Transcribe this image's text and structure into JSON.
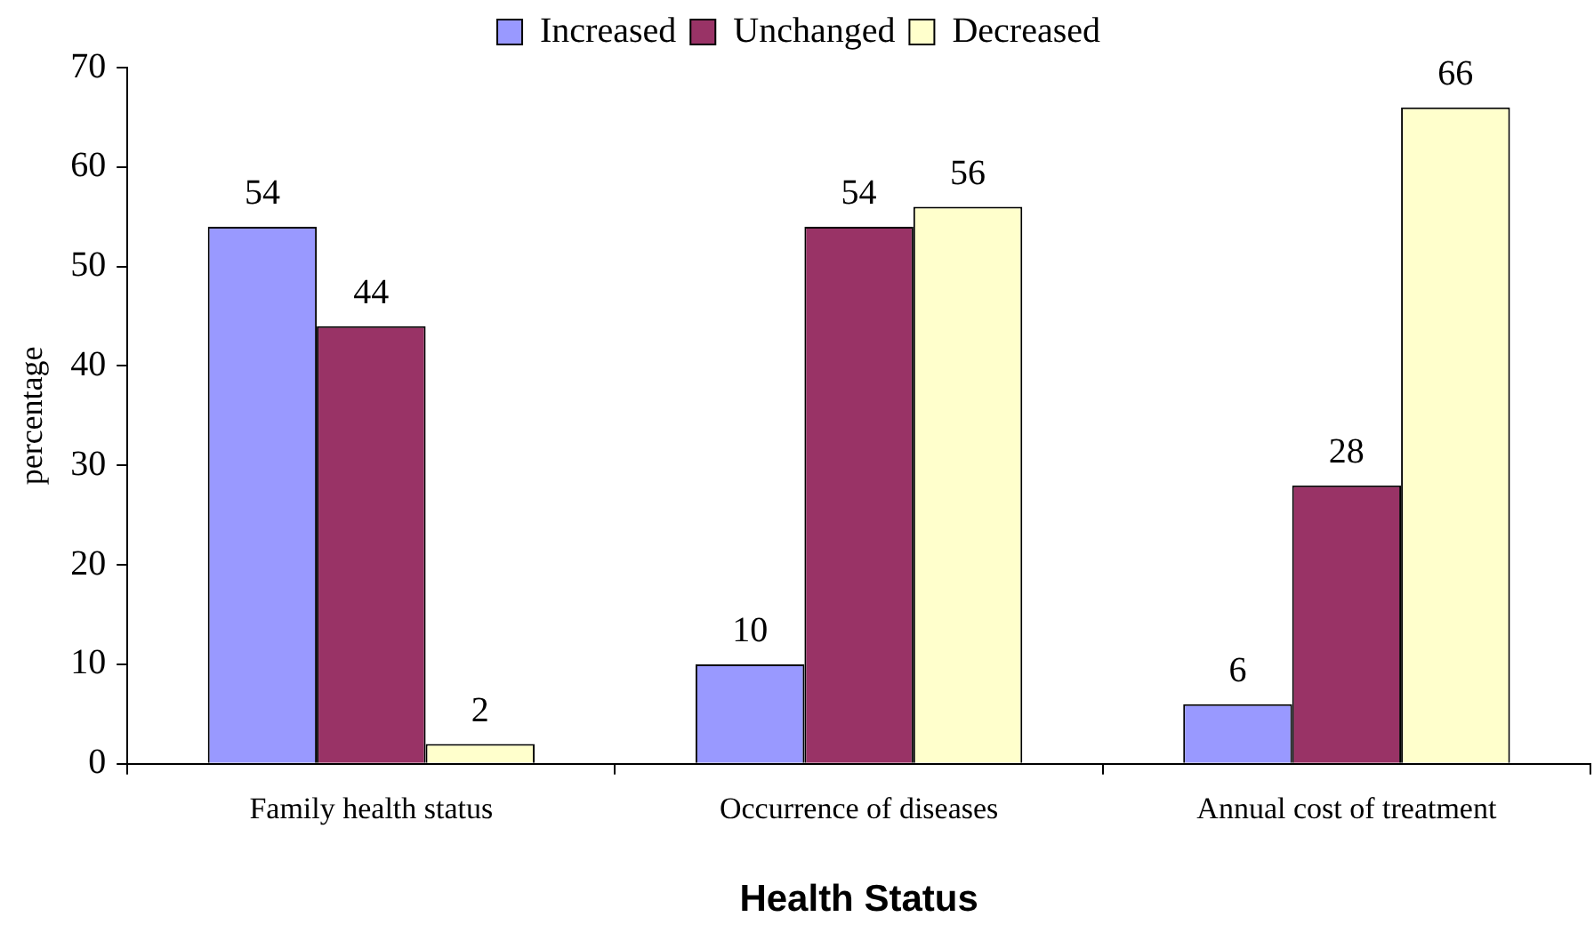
{
  "chart_data": {
    "type": "bar",
    "xlabel": "Health Status",
    "ylabel": "percentage",
    "categories": [
      "Family health status",
      "Occurrence of diseases",
      "Annual cost of treatment"
    ],
    "series": [
      {
        "name": "Increased",
        "color": "#9999ff",
        "values": [
          54,
          10,
          6
        ]
      },
      {
        "name": "Unchanged",
        "color": "#993366",
        "values": [
          44,
          54,
          28
        ]
      },
      {
        "name": "Decreased",
        "color": "#ffffcc",
        "values": [
          2,
          56,
          66
        ]
      }
    ],
    "ylim": [
      0,
      70
    ],
    "yticks": [
      0,
      10,
      20,
      30,
      40,
      50,
      60,
      70
    ],
    "grid": false,
    "legend": "top",
    "data_labels": true
  }
}
